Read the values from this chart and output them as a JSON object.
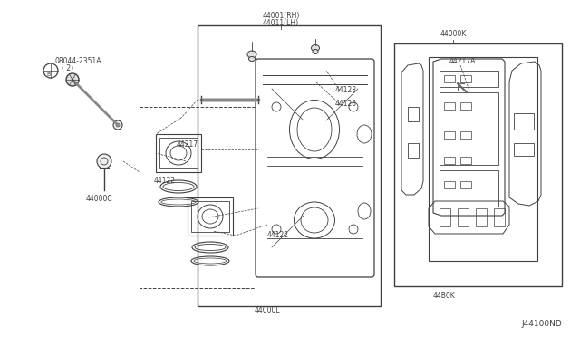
{
  "bg_color": "#ffffff",
  "lc": "#404040",
  "fs": 5.5,
  "diagram_id": "J44100ND",
  "label_08044": "08044-2351A",
  "label_2": "( 2)",
  "label_44000C": "44000C",
  "label_44217": "44217",
  "label_44122a": "44122",
  "label_44122b": "44122",
  "label_44001RH": "44001(RH)",
  "label_44011LH": "44011(LH)",
  "label_44128a": "44128",
  "label_44128b": "44128",
  "label_44000L": "44000L",
  "label_44000K": "44000K",
  "label_44217A": "44217A",
  "label_44B0K": "44B0K"
}
